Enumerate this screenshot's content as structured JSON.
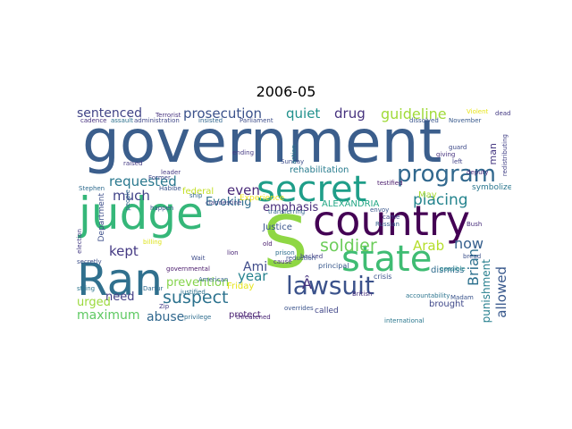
{
  "title": "2006-05",
  "words": [
    {
      "text": "government",
      "color": "#3b5e8c"
    },
    {
      "text": "judge",
      "color": "#35b779"
    },
    {
      "text": "country",
      "color": "#440154"
    },
    {
      "text": "secret",
      "color": "#1f9e89"
    },
    {
      "text": "state",
      "color": "#3fbc73"
    },
    {
      "text": "Ran",
      "color": "#30708e"
    },
    {
      "text": "S",
      "color": "#8fd744"
    },
    {
      "text": "program",
      "color": "#31688e"
    },
    {
      "text": "lawsuit",
      "color": "#3b528b"
    },
    {
      "text": "soldier",
      "color": "#6ccd5a"
    },
    {
      "text": "suspect",
      "color": "#2c728e"
    },
    {
      "text": "prosecution",
      "color": "#3b528b"
    },
    {
      "text": "guideline",
      "color": "#a0da39"
    },
    {
      "text": "sentenced",
      "color": "#414487"
    },
    {
      "text": "requested",
      "color": "#2a788e"
    },
    {
      "text": "quiet",
      "color": "#21918c"
    },
    {
      "text": "drug",
      "color": "#46327e"
    },
    {
      "text": "placing",
      "color": "#25848e"
    },
    {
      "text": "maximum",
      "color": "#5ec962"
    },
    {
      "text": "abuse",
      "color": "#31688e"
    },
    {
      "text": "now",
      "color": "#355f8d"
    },
    {
      "text": "allowed",
      "color": "#38588c"
    },
    {
      "text": "Arab",
      "color": "#b5de2b"
    },
    {
      "text": "Brian",
      "color": "#2d708e"
    },
    {
      "text": "much",
      "color": "#404387"
    },
    {
      "text": "kept",
      "color": "#443983"
    },
    {
      "text": "year",
      "color": "#26828e"
    },
    {
      "text": "even",
      "color": "#482878"
    },
    {
      "text": "Ami",
      "color": "#3e4a89"
    },
    {
      "text": "emphasis",
      "color": "#472c7a"
    },
    {
      "text": "urged",
      "color": "#9bd93c"
    },
    {
      "text": "need",
      "color": "#433e85"
    },
    {
      "text": "Evoking",
      "color": "#2e6f8e"
    },
    {
      "text": "prevention",
      "color": "#84d44b"
    },
    {
      "text": "ALEXANDRIA",
      "color": "#22a785"
    },
    {
      "text": "rehabilitation",
      "color": "#287c8e"
    },
    {
      "text": "Justice",
      "color": "#3a548c"
    },
    {
      "text": "Friday",
      "color": "#e5e419"
    },
    {
      "text": "protect",
      "color": "#481f70"
    },
    {
      "text": "brought",
      "color": "#3f4889"
    },
    {
      "text": "dismiss",
      "color": "#2f6c8e"
    },
    {
      "text": "called",
      "color": "#404688"
    },
    {
      "text": "punishment",
      "color": "#277f8e"
    },
    {
      "text": "federal",
      "color": "#c2df23"
    },
    {
      "text": "Department",
      "color": "#3d4e8a"
    },
    {
      "text": "man",
      "color": "#453781"
    },
    {
      "text": "symbolized",
      "color": "#2a768e"
    },
    {
      "text": "May",
      "color": "#a8db34"
    },
    {
      "text": "Experience",
      "color": "#f1e51d"
    },
    {
      "text": "Terrorist",
      "color": "#46337f"
    },
    {
      "text": "Parliament",
      "color": "#3d4d8a"
    },
    {
      "text": "Violent",
      "color": "#e7e419"
    },
    {
      "text": "dead",
      "color": "#443a83"
    },
    {
      "text": "crisis",
      "color": "#3a538b"
    },
    {
      "text": "principal",
      "color": "#38588c"
    },
    {
      "text": "accountability",
      "color": "#2b748e"
    },
    {
      "text": "international",
      "color": "#2a778e"
    },
    {
      "text": "privilege",
      "color": "#2e6d8e"
    },
    {
      "text": "threatened",
      "color": "#482475"
    },
    {
      "text": "Russian",
      "color": "#355e8d"
    },
    {
      "text": "Bush",
      "color": "#472d7b"
    },
    {
      "text": "envoy",
      "color": "#39568c"
    },
    {
      "text": "came",
      "color": "#3e4989"
    },
    {
      "text": "testified",
      "color": "#48186a"
    },
    {
      "text": "left",
      "color": "#414287"
    },
    {
      "text": "Sunday",
      "color": "#3d4d8a"
    },
    {
      "text": "leader",
      "color": "#453882"
    },
    {
      "text": "American",
      "color": "#33638d"
    },
    {
      "text": "secretly",
      "color": "#3c4f8a"
    },
    {
      "text": "election",
      "color": "#443b84"
    },
    {
      "text": "governmental",
      "color": "#48186a"
    },
    {
      "text": "backed",
      "color": "#424086"
    },
    {
      "text": "Madam",
      "color": "#3a548c"
    },
    {
      "text": "Wait",
      "color": "#3e4c8a"
    },
    {
      "text": "transferring",
      "color": "#32658e"
    },
    {
      "text": "action",
      "color": "#29798e"
    },
    {
      "text": "ending",
      "color": "#443983"
    },
    {
      "text": "cause",
      "color": "#472f7d"
    },
    {
      "text": "dissolved",
      "color": "#39558c"
    },
    {
      "text": "redistributing",
      "color": "#424186"
    },
    {
      "text": "insisted",
      "color": "#31668e"
    },
    {
      "text": "administration",
      "color": "#3f4788"
    },
    {
      "text": "assault",
      "color": "#2c718e"
    },
    {
      "text": "cadence",
      "color": "#46307e"
    },
    {
      "text": "prison",
      "color": "#2e6e8e"
    },
    {
      "text": "reduction",
      "color": "#3b518b"
    },
    {
      "text": "lion",
      "color": "#482576"
    },
    {
      "text": "string",
      "color": "#2b758e"
    },
    {
      "text": "Zip",
      "color": "#433d84"
    },
    {
      "text": "people",
      "color": "#31678e"
    },
    {
      "text": "raised",
      "color": "#443a83"
    },
    {
      "text": "billing",
      "color": "#dde318"
    },
    {
      "text": "British",
      "color": "#46317e"
    },
    {
      "text": "justified",
      "color": "#2d718e"
    },
    {
      "text": "overrides",
      "color": "#3a538b"
    },
    {
      "text": "Â",
      "color": "#46327e"
    },
    {
      "text": "old",
      "color": "#481a6c"
    },
    {
      "text": "Former",
      "color": "#3f4889"
    },
    {
      "text": "ship",
      "color": "#31668e"
    },
    {
      "text": "clandestine",
      "color": "#424186"
    },
    {
      "text": "Habibe",
      "color": "#3b528b"
    },
    {
      "text": "Stephen",
      "color": "#2f6b8e"
    },
    {
      "text": "November",
      "color": "#38598c"
    },
    {
      "text": "guard",
      "color": "#3e4a89"
    },
    {
      "text": "possible",
      "color": "#24868e"
    },
    {
      "text": "deputy",
      "color": "#472a7a"
    },
    {
      "text": "bread",
      "color": "#3c508b"
    },
    {
      "text": "giving",
      "color": "#46337f"
    },
    {
      "text": "happen",
      "color": "#3b518b"
    },
    {
      "text": "Darfur",
      "color": "#2f6b8e"
    }
  ]
}
